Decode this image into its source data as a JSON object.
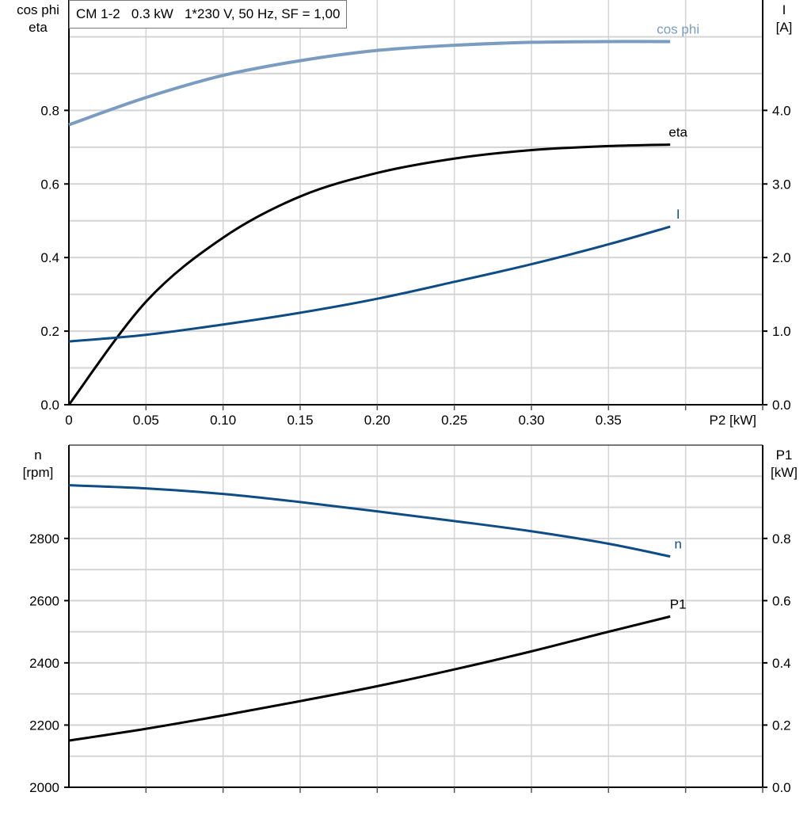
{
  "chart_data": [
    {
      "type": "line",
      "title": "CM 1-2   0.3 kW   1*230 V, 50 Hz, SF = 1,00",
      "xlabel": "P2 [kW]",
      "ylabel_left": [
        "cos phi",
        "eta"
      ],
      "ylabel_right": [
        "I",
        "[A]"
      ],
      "xlim": [
        0,
        0.45
      ],
      "ylim_left": [
        0,
        1.1
      ],
      "ylim_right": [
        0,
        5.5
      ],
      "x_ticks": [
        "0",
        "0.05",
        "0.10",
        "0.15",
        "0.20",
        "0.25",
        "0.30",
        "0.35"
      ],
      "y_left_ticks": [
        "0.0",
        "0.2",
        "0.4",
        "0.6",
        "0.8"
      ],
      "y_right_ticks": [
        "0.0",
        "1.0",
        "2.0",
        "3.0",
        "4.0"
      ],
      "grid": true,
      "x": [
        0,
        0.05,
        0.1,
        0.15,
        0.2,
        0.25,
        0.3,
        0.35,
        0.39
      ],
      "series": [
        {
          "name": "cos phi",
          "axis": "left",
          "color": "#7a9cc0",
          "values": [
            0.761,
            0.835,
            0.895,
            0.935,
            0.963,
            0.977,
            0.985,
            0.987,
            0.987
          ]
        },
        {
          "name": "eta",
          "axis": "left",
          "color": "#000000",
          "values": [
            0.0,
            0.28,
            0.454,
            0.566,
            0.63,
            0.669,
            0.692,
            0.703,
            0.707
          ]
        },
        {
          "name": "I",
          "axis": "right",
          "color": "#0e4c85",
          "values": [
            0.86,
            0.95,
            1.09,
            1.25,
            1.44,
            1.67,
            1.91,
            2.18,
            2.42
          ]
        }
      ]
    },
    {
      "type": "line",
      "ylabel_left": [
        "n",
        "[rpm]"
      ],
      "ylabel_right": [
        "P1",
        "[kW]"
      ],
      "xlim": [
        0,
        0.45
      ],
      "ylim_left": [
        2000,
        3100
      ],
      "ylim_right": [
        0,
        1.1
      ],
      "y_left_ticks": [
        "2000",
        "2200",
        "2400",
        "2600",
        "2800"
      ],
      "y_right_ticks": [
        "0.0",
        "0.2",
        "0.4",
        "0.6",
        "0.8"
      ],
      "grid": true,
      "x": [
        0,
        0.05,
        0.1,
        0.15,
        0.2,
        0.25,
        0.3,
        0.35,
        0.39
      ],
      "series": [
        {
          "name": "n",
          "axis": "left",
          "color": "#0e4c85",
          "values": [
            2971,
            2961,
            2943,
            2917,
            2887,
            2856,
            2823,
            2783,
            2742
          ]
        },
        {
          "name": "P1",
          "axis": "right",
          "color": "#000000",
          "values": [
            0.15,
            0.188,
            0.231,
            0.277,
            0.325,
            0.379,
            0.437,
            0.5,
            0.549
          ]
        }
      ]
    }
  ]
}
